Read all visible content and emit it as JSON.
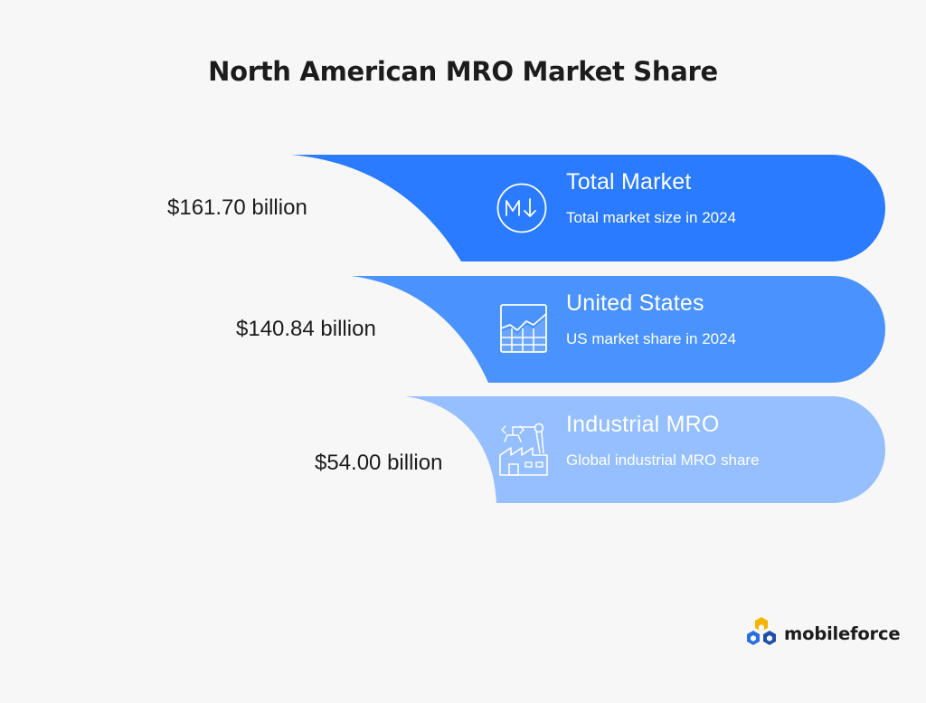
{
  "title": "North American MRO Market Share",
  "colors": {
    "background": "#f7f7f7",
    "tier1": "#2a7bff",
    "tier2": "#4a93ff",
    "tier3": "#95bfff"
  },
  "tiers": [
    {
      "value": "$161.70 billion",
      "title": "Total Market",
      "subtitle": "Total market size in 2024",
      "icon": "m-down-arrow-icon"
    },
    {
      "value": "$140.84 billion",
      "title": "United States",
      "subtitle": "US market share in 2024",
      "icon": "growth-chart-icon"
    },
    {
      "value": "$54.00 billion",
      "title": "Industrial MRO",
      "subtitle": "Global industrial MRO share",
      "icon": "factory-robot-arm-icon"
    }
  ],
  "brand": {
    "name": "mobileforce",
    "logo_icon": "mobileforce-hexagon-logo"
  }
}
